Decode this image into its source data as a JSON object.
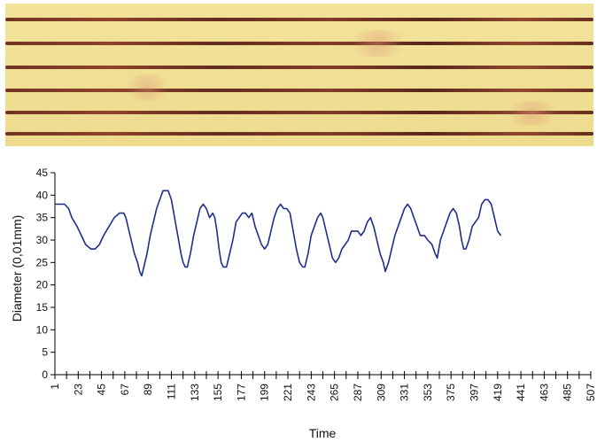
{
  "photo": {
    "description_icon": "fiber-micrograph",
    "fiber_count": 6
  },
  "chart_data": {
    "type": "line",
    "xlabel": "Time",
    "ylabel": "Diameter (0,01mm)",
    "ylim": [
      0,
      45
    ],
    "yticks": [
      0,
      5,
      10,
      15,
      20,
      25,
      30,
      35,
      40,
      45
    ],
    "xlim": [
      1,
      507
    ],
    "xticks": [
      1,
      23,
      45,
      67,
      89,
      111,
      133,
      155,
      177,
      199,
      221,
      243,
      265,
      287,
      309,
      331,
      353,
      375,
      397,
      419,
      441,
      463,
      485,
      507
    ],
    "series": [
      {
        "color": "#1f2f8a",
        "points": [
          [
            1,
            38
          ],
          [
            10,
            38
          ],
          [
            14,
            37
          ],
          [
            17,
            35
          ],
          [
            22,
            33
          ],
          [
            26,
            31
          ],
          [
            30,
            29
          ],
          [
            35,
            28
          ],
          [
            39,
            28
          ],
          [
            43,
            29
          ],
          [
            47,
            31
          ],
          [
            52,
            33
          ],
          [
            57,
            35
          ],
          [
            62,
            36
          ],
          [
            66,
            36
          ],
          [
            68,
            35
          ],
          [
            70,
            33
          ],
          [
            73,
            30
          ],
          [
            76,
            27
          ],
          [
            79,
            25
          ],
          [
            81,
            23
          ],
          [
            83,
            22
          ],
          [
            85,
            24
          ],
          [
            88,
            27
          ],
          [
            91,
            31
          ],
          [
            94,
            34
          ],
          [
            97,
            37
          ],
          [
            100,
            39
          ],
          [
            103,
            41
          ],
          [
            108,
            41
          ],
          [
            111,
            39
          ],
          [
            114,
            35
          ],
          [
            117,
            31
          ],
          [
            120,
            27
          ],
          [
            122,
            25
          ],
          [
            124,
            24
          ],
          [
            126,
            24
          ],
          [
            129,
            27
          ],
          [
            132,
            31
          ],
          [
            135,
            34
          ],
          [
            138,
            37
          ],
          [
            141,
            38
          ],
          [
            144,
            37
          ],
          [
            147,
            35
          ],
          [
            150,
            36
          ],
          [
            152,
            35
          ],
          [
            154,
            32
          ],
          [
            156,
            28
          ],
          [
            158,
            25
          ],
          [
            160,
            24
          ],
          [
            163,
            24
          ],
          [
            166,
            27
          ],
          [
            169,
            30
          ],
          [
            172,
            34
          ],
          [
            175,
            35
          ],
          [
            178,
            36
          ],
          [
            181,
            36
          ],
          [
            184,
            35
          ],
          [
            187,
            36
          ],
          [
            190,
            33
          ],
          [
            193,
            31
          ],
          [
            196,
            29
          ],
          [
            199,
            28
          ],
          [
            202,
            29
          ],
          [
            205,
            32
          ],
          [
            208,
            35
          ],
          [
            211,
            37
          ],
          [
            214,
            38
          ],
          [
            217,
            37
          ],
          [
            220,
            37
          ],
          [
            223,
            36
          ],
          [
            226,
            32
          ],
          [
            229,
            28
          ],
          [
            232,
            25
          ],
          [
            235,
            24
          ],
          [
            237,
            24
          ],
          [
            240,
            27
          ],
          [
            243,
            31
          ],
          [
            246,
            33
          ],
          [
            249,
            35
          ],
          [
            252,
            36
          ],
          [
            254,
            35
          ],
          [
            257,
            32
          ],
          [
            260,
            29
          ],
          [
            263,
            26
          ],
          [
            266,
            25
          ],
          [
            269,
            26
          ],
          [
            272,
            28
          ],
          [
            275,
            29
          ],
          [
            278,
            30
          ],
          [
            281,
            32
          ],
          [
            284,
            32
          ],
          [
            287,
            32
          ],
          [
            290,
            31
          ],
          [
            293,
            32
          ],
          [
            296,
            34
          ],
          [
            299,
            35
          ],
          [
            302,
            33
          ],
          [
            305,
            30
          ],
          [
            308,
            27
          ],
          [
            311,
            25
          ],
          [
            313,
            23
          ],
          [
            316,
            25
          ],
          [
            319,
            28
          ],
          [
            322,
            31
          ],
          [
            325,
            33
          ],
          [
            328,
            35
          ],
          [
            331,
            37
          ],
          [
            334,
            38
          ],
          [
            337,
            37
          ],
          [
            340,
            35
          ],
          [
            343,
            33
          ],
          [
            346,
            31
          ],
          [
            350,
            31
          ],
          [
            353,
            30
          ],
          [
            357,
            29
          ],
          [
            360,
            27
          ],
          [
            362,
            26
          ],
          [
            365,
            30
          ],
          [
            368,
            32
          ],
          [
            371,
            34
          ],
          [
            374,
            36
          ],
          [
            377,
            37
          ],
          [
            380,
            36
          ],
          [
            383,
            33
          ],
          [
            385,
            30
          ],
          [
            387,
            28
          ],
          [
            389,
            28
          ],
          [
            392,
            30
          ],
          [
            395,
            33
          ],
          [
            398,
            34
          ],
          [
            401,
            35
          ],
          [
            404,
            38
          ],
          [
            407,
            39
          ],
          [
            410,
            39
          ],
          [
            413,
            38
          ],
          [
            416,
            35
          ],
          [
            419,
            32
          ],
          [
            422,
            31
          ]
        ]
      }
    ]
  }
}
